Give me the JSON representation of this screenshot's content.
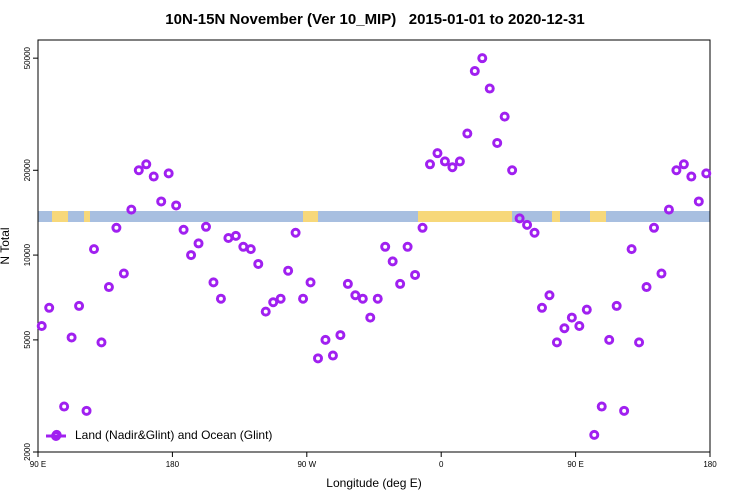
{
  "chart_data": {
    "type": "scatter",
    "title": "10N-15N November (Ver 10_MIP)   2015-01-01 to 2020-12-31",
    "xlabel": "Longitude (deg E)",
    "ylabel": "N Total",
    "log_y": true,
    "xlim": [
      90,
      540
    ],
    "xticks": [
      {
        "value": 90,
        "label": "90 E"
      },
      {
        "value": 180,
        "label": "180"
      },
      {
        "value": 270,
        "label": "90 W"
      },
      {
        "value": 360,
        "label": "0"
      },
      {
        "value": 450,
        "label": "90 E"
      },
      {
        "value": 540,
        "label": "180"
      }
    ],
    "ylim": [
      2000,
      58000
    ],
    "yticks": [
      2000,
      5000,
      10000,
      20000,
      50000
    ],
    "legend_position": "bottom-left",
    "series": [
      {
        "name": "Land (Nadir&Glint) and Ocean (Glint)",
        "color": "#a020f0",
        "x": [
          92.5,
          97.5,
          102.5,
          107.5,
          112.5,
          117.5,
          122.5,
          127.5,
          132.5,
          137.5,
          142.5,
          147.5,
          152.5,
          157.5,
          162.5,
          167.5,
          172.5,
          177.5,
          182.5,
          187.5,
          192.5,
          197.5,
          202.5,
          207.5,
          212.5,
          217.5,
          222.5,
          227.5,
          232.5,
          237.5,
          242.5,
          247.5,
          252.5,
          257.5,
          262.5,
          267.5,
          272.5,
          277.5,
          282.5,
          287.5,
          292.5,
          297.5,
          302.5,
          307.5,
          312.5,
          317.5,
          322.5,
          327.5,
          332.5,
          337.5,
          342.5,
          347.5,
          352.5,
          357.5,
          362.5,
          367.5,
          372.5,
          377.5,
          382.5,
          387.5,
          392.5,
          397.5,
          402.5,
          407.5,
          412.5,
          417.5,
          422.5,
          427.5,
          432.5,
          437.5,
          442.5,
          447.5,
          452.5,
          457.5,
          462.5,
          467.5,
          472.5,
          477.5,
          482.5,
          487.5,
          492.5,
          497.5,
          502.5,
          507.5,
          512.5,
          517.5,
          522.5,
          527.5,
          532.5,
          537.5
        ],
        "values": [
          5600,
          6500,
          2300,
          2900,
          5100,
          6600,
          2800,
          10500,
          4900,
          7700,
          12500,
          8600,
          14500,
          20000,
          21000,
          19000,
          15500,
          19500,
          15000,
          12300,
          10000,
          11000,
          12600,
          8000,
          7000,
          11500,
          11700,
          10700,
          10500,
          9300,
          6300,
          6800,
          7000,
          8800,
          12000,
          7000,
          8000,
          4300,
          5000,
          4400,
          5200,
          7900,
          7200,
          7000,
          6000,
          7000,
          10700,
          9500,
          7900,
          10700,
          8500,
          12500,
          21000,
          23000,
          21500,
          20500,
          21500,
          27000,
          45000,
          50000,
          39000,
          25000,
          31000,
          20000,
          13500,
          12800,
          12000,
          6500,
          7200,
          4900,
          5500,
          6000,
          5600,
          6400,
          2300,
          2900,
          5000,
          6600,
          2800,
          10500,
          4900,
          7700,
          12500,
          8600,
          14500,
          20000,
          21000,
          19000,
          15500,
          19500
        ]
      }
    ]
  }
}
